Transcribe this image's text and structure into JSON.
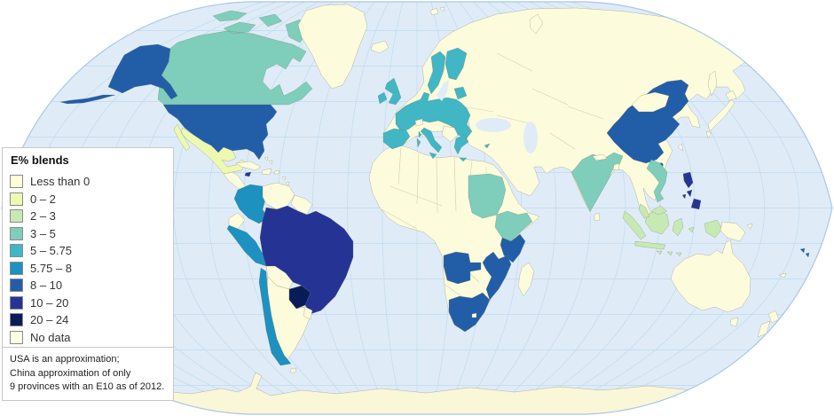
{
  "legend": {
    "title": "E% blends",
    "items": [
      {
        "label": "Less than 0",
        "color": "#ffffd9"
      },
      {
        "label": "0 – 2",
        "color": "#edf8b1"
      },
      {
        "label": "2 – 3",
        "color": "#c7e9b4"
      },
      {
        "label": "3 – 5",
        "color": "#7fcdbb"
      },
      {
        "label": "5 – 5.75",
        "color": "#41b6c4"
      },
      {
        "label": "5.75 – 8",
        "color": "#1d91c0"
      },
      {
        "label": "8 – 10",
        "color": "#225ea8"
      },
      {
        "label": "10 – 20",
        "color": "#253494"
      },
      {
        "label": "20 – 24",
        "color": "#081d58"
      },
      {
        "label": "No data",
        "color": "#ffffe3"
      }
    ],
    "footnote_lines": [
      "USA is an approximation;",
      "China approximation of only",
      "9 provinces with an E10 as of 2012."
    ]
  },
  "map": {
    "ocean_color": "#dfecf8",
    "graticule_color": "#c7ddf0",
    "outline_color": "#a9c7e2",
    "nodata_color": "#fcfbdc",
    "antarctica_color": "#faf6d8"
  },
  "region_fills": {
    "usa": "#225ea8",
    "canada": "#7fcdbb",
    "greenland": "#fcfbdc",
    "mexico": "#edf8b1",
    "central_america": "#fcfbdc",
    "costa_rica": "#1d91c0",
    "panama": "#edf8b1",
    "cuba": "#fcfbdc",
    "jamaica": "#253494",
    "hispaniola": "#fcfbdc",
    "caribbean": "#fcfbdc",
    "colombia": "#1d91c0",
    "venezuela": "#fcfbdc",
    "guianas": "#fcfbdc",
    "ecuador": "#fcfbdc",
    "peru": "#1d91c0",
    "brazil": "#253494",
    "bolivia": "#fcfbdc",
    "paraguay": "#081d58",
    "chile": "#1d91c0",
    "argentina": "#fcfbdc",
    "uruguay": "#fcfbdc",
    "falklands": "#fcfbdc",
    "iceland": "#fcfbdc",
    "eurasia": "#fcfbdc",
    "africa": "#fcfbdc",
    "madagascar": "#fcfbdc",
    "eu": "#41b6c4",
    "balkans": "#fcfbdc",
    "switzerland": "#fcfbdc",
    "sudan": "#7fcdbb",
    "ethiopia": "#7fcdbb",
    "kenya": "#225ea8",
    "angola": "#225ea8",
    "mozambique": "#225ea8",
    "south_africa": "#225ea8",
    "lesotho": "#fcfbdc",
    "india": "#7fcdbb",
    "bangladesh": "#fcfbdc",
    "nepal": "#fcfbdc",
    "sri_lanka": "#fcfbdc",
    "china": "#225ea8",
    "mongolia": "#fcfbdc",
    "taiwan": "#fcfbdc",
    "hainan": "#225ea8",
    "vietnam_laos": "#7fcdbb",
    "philippines": "#253494",
    "japan": "#fcfbdc",
    "sakhalin": "#fcfbdc",
    "indonesia": "#c7e9b4",
    "malaysia": "#c7e9b4",
    "png": "#fcfbdc",
    "australia": "#fcfbdc",
    "new_zealand": "#fcfbdc",
    "new_caledonia": "#fcfbdc",
    "fiji": "#225ea8",
    "svalbard": "#fcfbdc",
    "novaya_zemlya": "#fcfbdc",
    "bahamas": "#fcfbdc"
  }
}
